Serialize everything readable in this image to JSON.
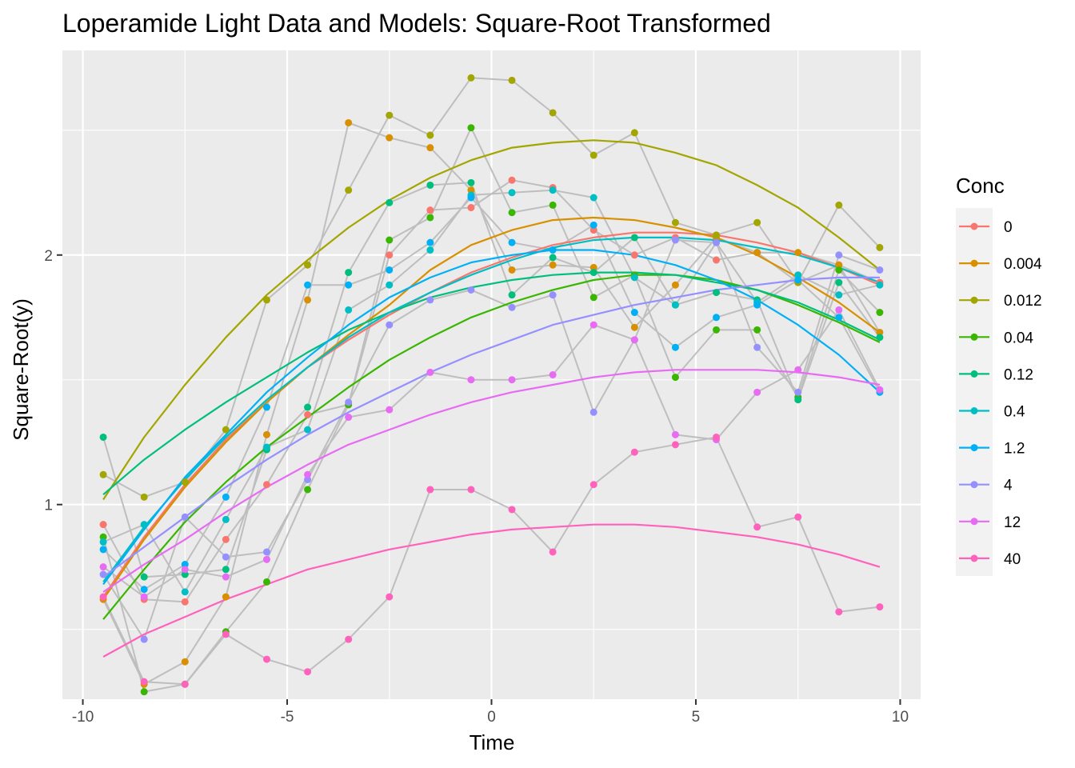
{
  "chart_data": {
    "type": "line",
    "title": "Loperamide Light Data and Models: Square-Root Transformed",
    "xlabel": "Time",
    "ylabel": "Square-Root(y)",
    "xlim": [
      -10.5,
      10.5
    ],
    "ylim": [
      0.22,
      2.82
    ],
    "x_ticks": [
      -10,
      -5,
      0,
      5,
      10
    ],
    "x_tick_labels": [
      "-10",
      "-5",
      "0",
      "5",
      "10"
    ],
    "y_ticks": [
      1,
      2
    ],
    "y_tick_labels": [
      "1",
      "2"
    ],
    "grid": true,
    "legend": {
      "title": "Conc",
      "position": "right"
    },
    "raw_line_color": "#bebebe",
    "panel_background": "#ebebeb",
    "x": [
      -9.5,
      -8.5,
      -7.5,
      -6.5,
      -5.5,
      -4.5,
      -3.5,
      -2.5,
      -1.5,
      -0.5,
      0.5,
      1.5,
      2.5,
      3.5,
      4.5,
      5.5,
      6.5,
      7.5,
      8.5,
      9.5
    ],
    "series": [
      {
        "name": "0",
        "color": "#F8766D",
        "points": [
          0.92,
          0.62,
          0.61,
          0.86,
          1.08,
          1.36,
          1.4,
          2.0,
          2.18,
          2.19,
          2.3,
          2.27,
          2.1,
          2.0,
          2.07,
          1.98,
          2.01,
          1.89,
          1.96,
          1.89
        ],
        "model": [
          0.63,
          0.87,
          1.08,
          1.26,
          1.41,
          1.55,
          1.66,
          1.76,
          1.85,
          1.93,
          1.99,
          2.04,
          2.07,
          2.09,
          2.09,
          2.08,
          2.05,
          2.01,
          1.95,
          1.88
        ]
      },
      {
        "name": "0.004",
        "color": "#D89000",
        "points": [
          0.62,
          0.28,
          0.37,
          0.63,
          1.28,
          1.82,
          2.53,
          2.47,
          2.43,
          2.26,
          1.94,
          1.96,
          1.95,
          1.71,
          1.88,
          2.07,
          2.01,
          2.01,
          1.96,
          1.69
        ],
        "model": [
          0.62,
          0.86,
          1.07,
          1.25,
          1.41,
          1.55,
          1.68,
          1.8,
          1.94,
          2.04,
          2.1,
          2.14,
          2.15,
          2.14,
          2.11,
          2.07,
          2.0,
          1.91,
          1.81,
          1.69
        ]
      },
      {
        "name": "0.012",
        "color": "#A3A500",
        "points": [
          1.12,
          1.03,
          1.09,
          1.3,
          1.82,
          1.96,
          2.26,
          2.56,
          2.48,
          2.71,
          2.7,
          2.57,
          2.4,
          2.49,
          2.13,
          2.08,
          2.13,
          1.89,
          2.2,
          2.03
        ],
        "model": [
          1.02,
          1.27,
          1.48,
          1.67,
          1.84,
          1.98,
          2.11,
          2.22,
          2.31,
          2.38,
          2.43,
          2.45,
          2.46,
          2.45,
          2.41,
          2.36,
          2.28,
          2.19,
          2.07,
          1.94
        ]
      },
      {
        "name": "0.04",
        "color": "#39B600",
        "points": [
          0.87,
          0.25,
          0.28,
          0.49,
          0.69,
          1.06,
          1.4,
          2.06,
          2.15,
          2.51,
          2.17,
          2.2,
          1.83,
          1.92,
          1.51,
          1.7,
          1.7,
          1.43,
          1.94,
          1.77
        ],
        "model": [
          0.54,
          0.74,
          0.93,
          1.09,
          1.23,
          1.35,
          1.47,
          1.58,
          1.67,
          1.75,
          1.81,
          1.86,
          1.9,
          1.92,
          1.92,
          1.9,
          1.86,
          1.8,
          1.73,
          1.65
        ]
      },
      {
        "name": "0.12",
        "color": "#00BF7D",
        "points": [
          1.27,
          0.71,
          0.72,
          0.74,
          1.22,
          1.39,
          1.93,
          2.21,
          2.28,
          2.29,
          1.84,
          1.99,
          1.93,
          2.07,
          1.8,
          1.85,
          1.82,
          1.42,
          1.89,
          1.67
        ],
        "model": [
          1.04,
          1.18,
          1.3,
          1.41,
          1.51,
          1.61,
          1.7,
          1.77,
          1.83,
          1.87,
          1.9,
          1.92,
          1.93,
          1.93,
          1.92,
          1.89,
          1.86,
          1.81,
          1.74,
          1.66
        ]
      },
      {
        "name": "0.4",
        "color": "#00BFC4",
        "points": [
          0.85,
          0.92,
          0.65,
          0.94,
          1.23,
          1.3,
          1.78,
          1.88,
          2.02,
          2.24,
          2.25,
          2.26,
          2.23,
          1.91,
          1.8,
          2.05,
          1.81,
          1.92,
          1.84,
          1.88
        ],
        "model": [
          0.69,
          0.91,
          1.1,
          1.27,
          1.42,
          1.55,
          1.67,
          1.77,
          1.85,
          1.92,
          1.98,
          2.03,
          2.06,
          2.07,
          2.07,
          2.06,
          2.03,
          2.0,
          1.95,
          1.89
        ]
      },
      {
        "name": "1.2",
        "color": "#00B0F6",
        "points": [
          0.82,
          0.66,
          0.76,
          1.03,
          1.39,
          1.88,
          1.88,
          1.94,
          2.05,
          2.23,
          2.05,
          2.02,
          2.12,
          1.77,
          1.63,
          1.75,
          1.8,
          1.9,
          1.75,
          1.45
        ],
        "model": [
          0.68,
          0.9,
          1.11,
          1.28,
          1.45,
          1.59,
          1.72,
          1.83,
          1.91,
          1.97,
          2.0,
          2.02,
          2.02,
          2.0,
          1.96,
          1.9,
          1.82,
          1.72,
          1.6,
          1.45
        ]
      },
      {
        "name": "4",
        "color": "#9590FF",
        "points": [
          0.72,
          0.46,
          0.95,
          0.79,
          0.81,
          1.1,
          1.41,
          1.72,
          1.82,
          1.86,
          1.79,
          1.84,
          1.37,
          1.66,
          2.06,
          2.05,
          1.63,
          1.45,
          2.0,
          1.94
        ],
        "model": [
          0.71,
          0.83,
          0.95,
          1.07,
          1.18,
          1.28,
          1.37,
          1.45,
          1.53,
          1.6,
          1.66,
          1.72,
          1.76,
          1.8,
          1.83,
          1.86,
          1.88,
          1.9,
          1.91,
          1.91
        ]
      },
      {
        "name": "12",
        "color": "#E76BF3",
        "points": [
          0.75,
          0.63,
          0.74,
          0.71,
          0.78,
          1.12,
          1.35,
          1.38,
          1.53,
          1.5,
          1.5,
          1.52,
          1.72,
          1.66,
          1.28,
          1.26,
          1.45,
          1.54,
          1.78,
          1.46
        ],
        "model": [
          0.65,
          0.76,
          0.86,
          0.97,
          1.07,
          1.16,
          1.24,
          1.3,
          1.36,
          1.41,
          1.45,
          1.48,
          1.51,
          1.53,
          1.54,
          1.54,
          1.54,
          1.53,
          1.51,
          1.48
        ]
      },
      {
        "name": "40",
        "color": "#FF62BC",
        "points": [
          0.63,
          0.29,
          0.28,
          0.48,
          0.38,
          0.33,
          0.46,
          0.63,
          1.06,
          1.06,
          0.98,
          0.81,
          1.08,
          1.21,
          1.24,
          1.27,
          0.91,
          0.95,
          0.57,
          0.59
        ],
        "model": [
          0.39,
          0.48,
          0.55,
          0.62,
          0.68,
          0.74,
          0.78,
          0.82,
          0.85,
          0.88,
          0.9,
          0.91,
          0.92,
          0.92,
          0.91,
          0.89,
          0.87,
          0.84,
          0.8,
          0.75
        ]
      }
    ]
  }
}
